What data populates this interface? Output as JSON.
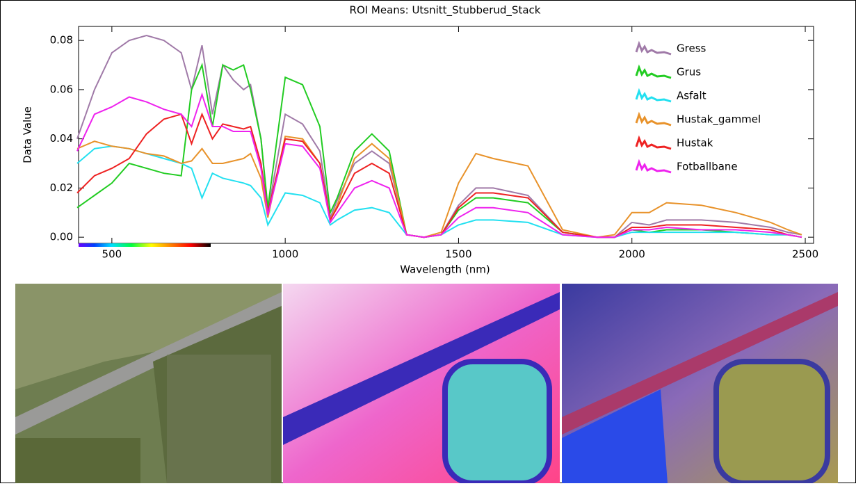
{
  "chart_data": {
    "type": "line",
    "title": "ROI Means: Utsnitt_Stubberud_Stack",
    "x_label": "Wavelength (nm)",
    "y_label": "Data Value",
    "x": [
      400,
      450,
      500,
      550,
      600,
      650,
      700,
      730,
      760,
      790,
      820,
      850,
      880,
      900,
      930,
      950,
      1000,
      1050,
      1100,
      1130,
      1150,
      1200,
      1250,
      1300,
      1350,
      1400,
      1450,
      1500,
      1550,
      1600,
      1700,
      1800,
      1900,
      1950,
      2000,
      2050,
      2100,
      2200,
      2300,
      2400,
      2450,
      2490
    ],
    "series": [
      {
        "name": "Gress",
        "color": "#a07aa8",
        "values": [
          0.04,
          0.06,
          0.075,
          0.08,
          0.082,
          0.08,
          0.075,
          0.06,
          0.078,
          0.05,
          0.07,
          0.064,
          0.06,
          0.062,
          0.04,
          0.01,
          0.05,
          0.046,
          0.035,
          0.008,
          0.015,
          0.03,
          0.035,
          0.03,
          0.001,
          0,
          0.001,
          0.013,
          0.02,
          0.02,
          0.017,
          0.002,
          0,
          0,
          0.006,
          0.005,
          0.007,
          0.007,
          0.006,
          0.004,
          0.002,
          0.001
        ]
      },
      {
        "name": "Grus",
        "color": "#22cc22",
        "values": [
          0.012,
          0.017,
          0.022,
          0.03,
          0.028,
          0.026,
          0.025,
          0.06,
          0.07,
          0.045,
          0.07,
          0.068,
          0.07,
          0.06,
          0.04,
          0.012,
          0.065,
          0.062,
          0.045,
          0.01,
          0.016,
          0.035,
          0.042,
          0.035,
          0.001,
          0,
          0.001,
          0.011,
          0.016,
          0.016,
          0.014,
          0.002,
          0,
          0,
          0.003,
          0.002,
          0.003,
          0.003,
          0.002,
          0.001,
          0.001,
          0
        ]
      },
      {
        "name": "Asfalt",
        "color": "#22e0f0",
        "values": [
          0.03,
          0.036,
          0.037,
          0.036,
          0.034,
          0.032,
          0.03,
          0.028,
          0.016,
          0.026,
          0.024,
          0.023,
          0.022,
          0.021,
          0.016,
          0.005,
          0.018,
          0.017,
          0.014,
          0.005,
          0.007,
          0.011,
          0.012,
          0.01,
          0.001,
          0,
          0.001,
          0.005,
          0.007,
          0.007,
          0.006,
          0.001,
          0,
          0,
          0.002,
          0.002,
          0.002,
          0.002,
          0.002,
          0.001,
          0.001,
          0
        ]
      },
      {
        "name": "Hustak_gammel",
        "color": "#e8922a",
        "values": [
          0.036,
          0.039,
          0.037,
          0.036,
          0.034,
          0.033,
          0.03,
          0.031,
          0.036,
          0.03,
          0.03,
          0.031,
          0.032,
          0.034,
          0.024,
          0.008,
          0.041,
          0.04,
          0.03,
          0.007,
          0.013,
          0.032,
          0.038,
          0.032,
          0.001,
          0,
          0.002,
          0.022,
          0.034,
          0.032,
          0.029,
          0.003,
          0,
          0.001,
          0.01,
          0.01,
          0.014,
          0.013,
          0.01,
          0.006,
          0.003,
          0.001
        ]
      },
      {
        "name": "Hustak",
        "color": "#ee2222",
        "values": [
          0.018,
          0.025,
          0.028,
          0.032,
          0.042,
          0.048,
          0.05,
          0.038,
          0.05,
          0.04,
          0.046,
          0.045,
          0.044,
          0.045,
          0.03,
          0.01,
          0.04,
          0.039,
          0.03,
          0.007,
          0.012,
          0.026,
          0.03,
          0.026,
          0.001,
          0,
          0.001,
          0.012,
          0.018,
          0.018,
          0.016,
          0.002,
          0,
          0,
          0.004,
          0.004,
          0.005,
          0.005,
          0.004,
          0.003,
          0.001,
          0
        ]
      },
      {
        "name": "Fotballbane",
        "color": "#ee22ee",
        "values": [
          0.035,
          0.05,
          0.053,
          0.057,
          0.055,
          0.052,
          0.05,
          0.045,
          0.058,
          0.045,
          0.045,
          0.043,
          0.043,
          0.043,
          0.028,
          0.009,
          0.038,
          0.037,
          0.028,
          0.006,
          0.01,
          0.02,
          0.023,
          0.02,
          0.001,
          0,
          0.001,
          0.008,
          0.012,
          0.012,
          0.01,
          0.001,
          0,
          0,
          0.003,
          0.003,
          0.004,
          0.003,
          0.003,
          0.002,
          0.001,
          0
        ]
      }
    ],
    "xlim": [
      404,
      2524
    ],
    "ylim": [
      -0.0025,
      0.0857
    ],
    "xticks": [
      500,
      1000,
      1500,
      2000,
      2500
    ],
    "yticks": [
      {
        "value": 0,
        "label": "0.00"
      },
      0.02,
      0.04,
      0.06,
      0.08
    ],
    "legend": "upper right"
  }
}
